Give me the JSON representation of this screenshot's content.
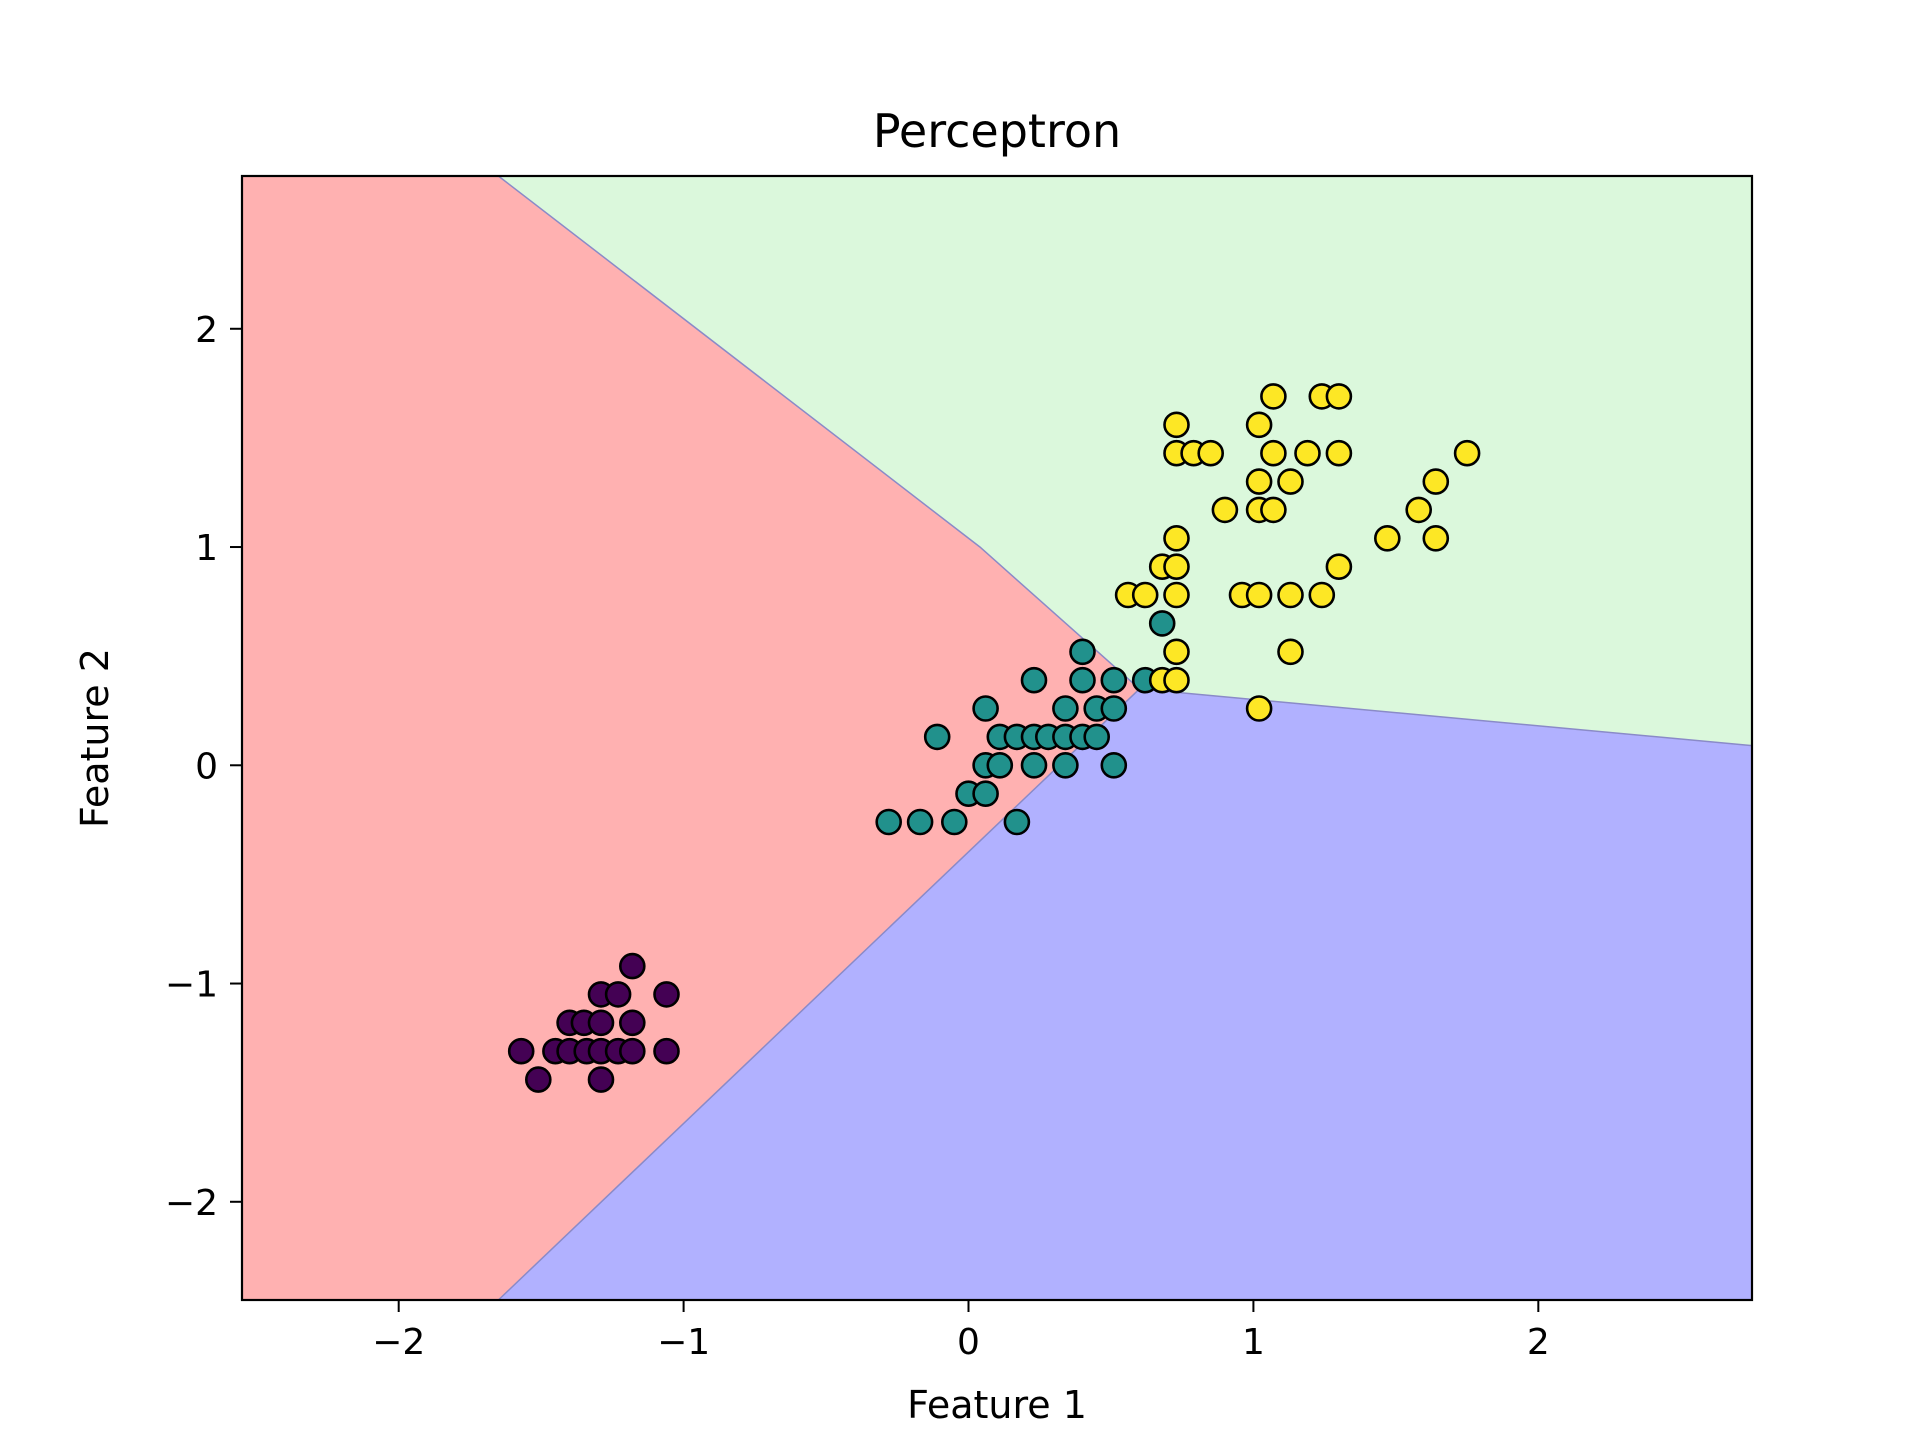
{
  "chart_data": {
    "type": "scatter",
    "title": "Perceptron",
    "xlabel": "Feature 1",
    "ylabel": "Feature 2",
    "xlim": [
      -2.55,
      2.75
    ],
    "ylim": [
      -2.45,
      2.7
    ],
    "xticks": [
      {
        "value": -2,
        "label": "−2"
      },
      {
        "value": -1,
        "label": "−1"
      },
      {
        "value": 0,
        "label": "0"
      },
      {
        "value": 1,
        "label": "1"
      },
      {
        "value": 2,
        "label": "2"
      }
    ],
    "yticks": [
      {
        "value": -2,
        "label": "−2"
      },
      {
        "value": -1,
        "label": "−1"
      },
      {
        "value": 0,
        "label": "0"
      },
      {
        "value": 1,
        "label": "1"
      },
      {
        "value": 2,
        "label": "2"
      }
    ],
    "grid": false,
    "legend": "none",
    "decision_regions": [
      {
        "class": 0,
        "color": "#ffb1b1",
        "polygon": [
          [
            -2.55,
            -2.45
          ],
          [
            -1.65,
            -2.45
          ],
          [
            0.6,
            0.35
          ],
          [
            0.04,
            1.0
          ],
          [
            -1.65,
            2.7
          ],
          [
            -2.55,
            2.7
          ]
        ]
      },
      {
        "class": 1,
        "color": "#b1b1ff",
        "polygon": [
          [
            -1.65,
            -2.45
          ],
          [
            2.75,
            -2.45
          ],
          [
            2.75,
            0.09
          ],
          [
            0.6,
            0.35
          ]
        ]
      },
      {
        "class": 2,
        "color": "#dbf8dc",
        "polygon": [
          [
            -1.65,
            2.7
          ],
          [
            2.75,
            2.7
          ],
          [
            2.75,
            0.09
          ],
          [
            0.6,
            0.35
          ],
          [
            0.04,
            1.0
          ]
        ]
      }
    ],
    "boundary_color": "#8a8ac8",
    "marker_edge_color": "#000000",
    "series": [
      {
        "class": 0,
        "color": "#440154",
        "points": [
          [
            -1.57,
            -1.31
          ],
          [
            -1.51,
            -1.44
          ],
          [
            -1.45,
            -1.31
          ],
          [
            -1.4,
            -1.18
          ],
          [
            -1.4,
            -1.31
          ],
          [
            -1.35,
            -1.18
          ],
          [
            -1.34,
            -1.31
          ],
          [
            -1.29,
            -1.05
          ],
          [
            -1.29,
            -1.18
          ],
          [
            -1.29,
            -1.31
          ],
          [
            -1.29,
            -1.44
          ],
          [
            -1.23,
            -1.05
          ],
          [
            -1.23,
            -1.31
          ],
          [
            -1.18,
            -0.92
          ],
          [
            -1.18,
            -1.18
          ],
          [
            -1.18,
            -1.31
          ],
          [
            -1.06,
            -1.05
          ],
          [
            -1.06,
            -1.31
          ]
        ]
      },
      {
        "class": 1,
        "color": "#21918c",
        "points": [
          [
            -0.28,
            -0.26
          ],
          [
            -0.17,
            -0.26
          ],
          [
            -0.05,
            -0.26
          ],
          [
            -0.11,
            0.13
          ],
          [
            0.0,
            -0.13
          ],
          [
            0.06,
            -0.13
          ],
          [
            0.06,
            0.0
          ],
          [
            0.06,
            0.26
          ],
          [
            0.11,
            0.0
          ],
          [
            0.11,
            0.13
          ],
          [
            0.17,
            0.13
          ],
          [
            0.17,
            -0.26
          ],
          [
            0.23,
            0.0
          ],
          [
            0.23,
            0.13
          ],
          [
            0.23,
            0.39
          ],
          [
            0.28,
            0.13
          ],
          [
            0.34,
            0.0
          ],
          [
            0.34,
            0.13
          ],
          [
            0.34,
            0.26
          ],
          [
            0.4,
            0.13
          ],
          [
            0.4,
            0.39
          ],
          [
            0.4,
            0.52
          ],
          [
            0.45,
            0.13
          ],
          [
            0.45,
            0.26
          ],
          [
            0.51,
            0.0
          ],
          [
            0.51,
            0.26
          ],
          [
            0.51,
            0.39
          ],
          [
            0.62,
            0.39
          ],
          [
            0.68,
            0.65
          ]
        ]
      },
      {
        "class": 2,
        "color": "#fde725",
        "points": [
          [
            0.56,
            0.78
          ],
          [
            0.62,
            0.78
          ],
          [
            0.68,
            0.39
          ],
          [
            0.68,
            0.91
          ],
          [
            0.73,
            0.39
          ],
          [
            0.73,
            0.52
          ],
          [
            0.73,
            0.78
          ],
          [
            0.73,
            0.91
          ],
          [
            0.73,
            1.04
          ],
          [
            0.73,
            1.43
          ],
          [
            0.73,
            1.56
          ],
          [
            0.79,
            1.43
          ],
          [
            0.85,
            1.43
          ],
          [
            0.9,
            1.17
          ],
          [
            0.96,
            0.78
          ],
          [
            1.02,
            0.26
          ],
          [
            1.02,
            0.78
          ],
          [
            1.02,
            1.17
          ],
          [
            1.02,
            1.3
          ],
          [
            1.02,
            1.56
          ],
          [
            1.07,
            1.17
          ],
          [
            1.07,
            1.43
          ],
          [
            1.07,
            1.69
          ],
          [
            1.13,
            0.52
          ],
          [
            1.13,
            0.78
          ],
          [
            1.13,
            1.3
          ],
          [
            1.19,
            1.43
          ],
          [
            1.24,
            0.78
          ],
          [
            1.24,
            1.69
          ],
          [
            1.3,
            0.91
          ],
          [
            1.3,
            1.43
          ],
          [
            1.3,
            1.69
          ],
          [
            1.47,
            1.04
          ],
          [
            1.58,
            1.17
          ],
          [
            1.64,
            1.04
          ],
          [
            1.64,
            1.3
          ],
          [
            1.75,
            1.43
          ]
        ]
      }
    ]
  }
}
